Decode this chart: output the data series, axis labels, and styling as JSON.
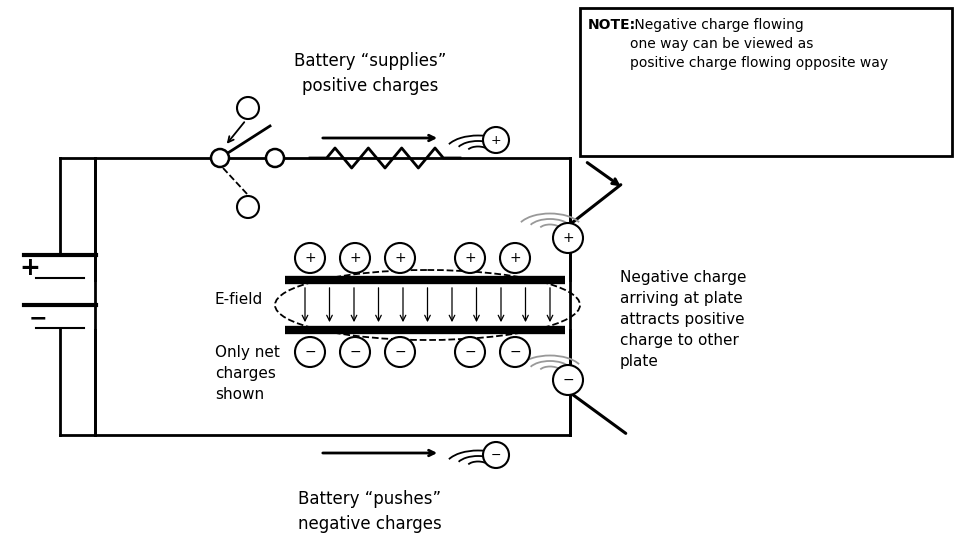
{
  "fg_color": "#000000",
  "fig_w": 9.6,
  "fig_h": 5.49,
  "note_text_body": " Negative charge flowing\none way can be viewed as\npositive charge flowing opposite way",
  "note_bold": "NOTE:",
  "label_battery_supplies": "Battery “supplies”\npositive charges",
  "label_battery_pushes": "Battery “pushes”\nnegative charges",
  "label_efield": "E-field",
  "label_net_charges": "Only net\ncharges\nshown",
  "label_neg_charge": "Negative charge\narriving at plate\nattracts positive\ncharge to other\nplate"
}
